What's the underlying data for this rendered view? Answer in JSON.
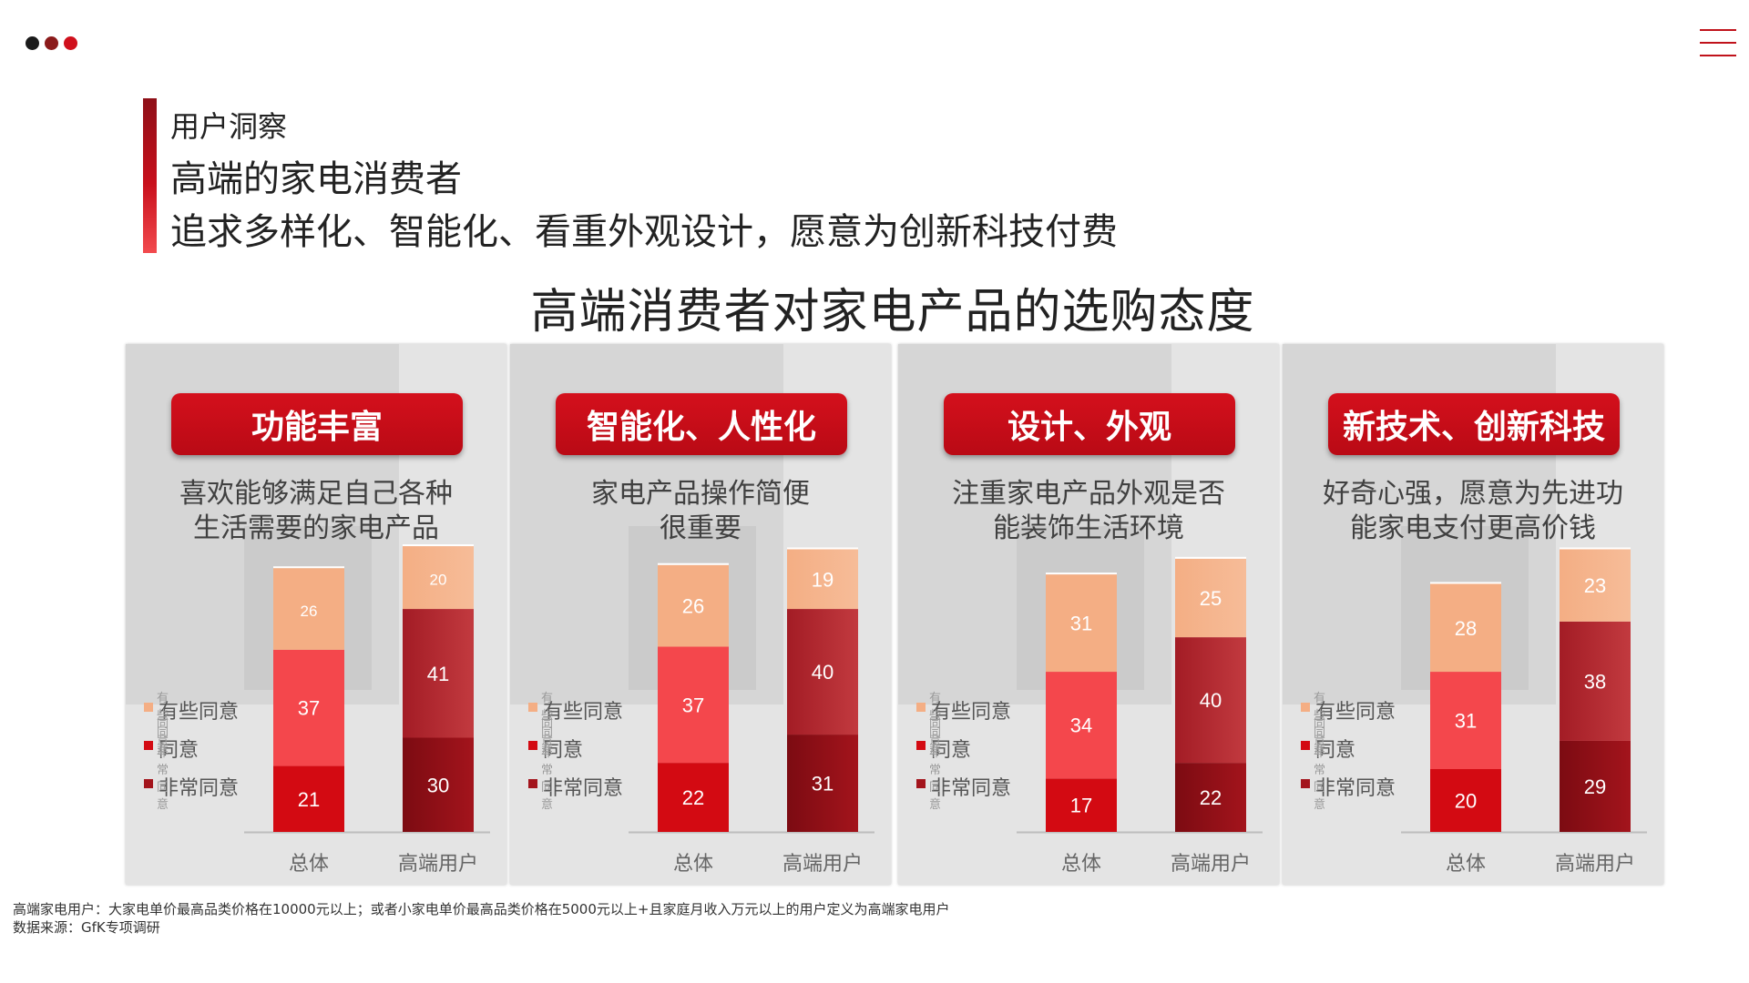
{
  "header": {
    "dot_colors": [
      "#1a1a1a",
      "#8b1a1a",
      "#d0101c"
    ],
    "eyebrow": "用户洞察",
    "headline": "高端的家电消费者",
    "subheadline": "追求多样化、智能化、看重外观设计，愿意为创新科技付费"
  },
  "colors": {
    "accent": "#c0121b",
    "somewhat_agree": "#f4ae84",
    "agree": "#f4474c",
    "strongly_agree": "#d30a12",
    "premium_top": "#f4ae84",
    "premium_mid": "#a31c25",
    "premium_bottom": "#7c0b12"
  },
  "legend": {
    "somewhat_agree": "有些同意",
    "agree": "同意",
    "strongly_agree": "非常同意",
    "ghost_somewhat": "有些同意",
    "ghost_agree": "同意",
    "ghost_strongly": "非常同意"
  },
  "chart_data": {
    "type": "bar",
    "stacked": true,
    "title": "高端消费者对家电产品的选购态度",
    "categories": [
      "总体",
      "高端用户"
    ],
    "panels": [
      {
        "label": "功能丰富",
        "description": [
          "喜欢能够满足自己各种",
          "生活需要的家电产品"
        ],
        "series": [
          {
            "name": "非常同意",
            "values": [
              21,
              30
            ]
          },
          {
            "name": "同意",
            "values": [
              37,
              41
            ]
          },
          {
            "name": "有些同意",
            "values": [
              26,
              20
            ]
          }
        ]
      },
      {
        "label": "智能化、人性化",
        "description": [
          "家电产品操作简便",
          "很重要"
        ],
        "series": [
          {
            "name": "非常同意",
            "values": [
              22,
              31
            ]
          },
          {
            "name": "同意",
            "values": [
              37,
              40
            ]
          },
          {
            "name": "有些同意",
            "values": [
              26,
              19
            ]
          }
        ]
      },
      {
        "label": "设计、外观",
        "description": [
          "注重家电产品外观是否",
          "能装饰生活环境"
        ],
        "series": [
          {
            "name": "非常同意",
            "values": [
              17,
              22
            ]
          },
          {
            "name": "同意",
            "values": [
              34,
              40
            ]
          },
          {
            "name": "有些同意",
            "values": [
              31,
              25
            ]
          }
        ]
      },
      {
        "label": "新技术、创新科技",
        "description": [
          "好奇心强，愿意为先进功",
          "能家电支付更高价钱"
        ],
        "series": [
          {
            "name": "非常同意",
            "values": [
              20,
              29
            ]
          },
          {
            "name": "同意",
            "values": [
              31,
              38
            ]
          },
          {
            "name": "有些同意",
            "values": [
              28,
              23
            ]
          }
        ]
      }
    ]
  },
  "footnotes": [
    "高端家电用户：大家电单价最高品类价格在10000元以上；或者小家电单价最高品类价格在5000元以上+且家庭月收入万元以上的用户定义为高端家电用户",
    "数据来源：GfK专项调研"
  ]
}
